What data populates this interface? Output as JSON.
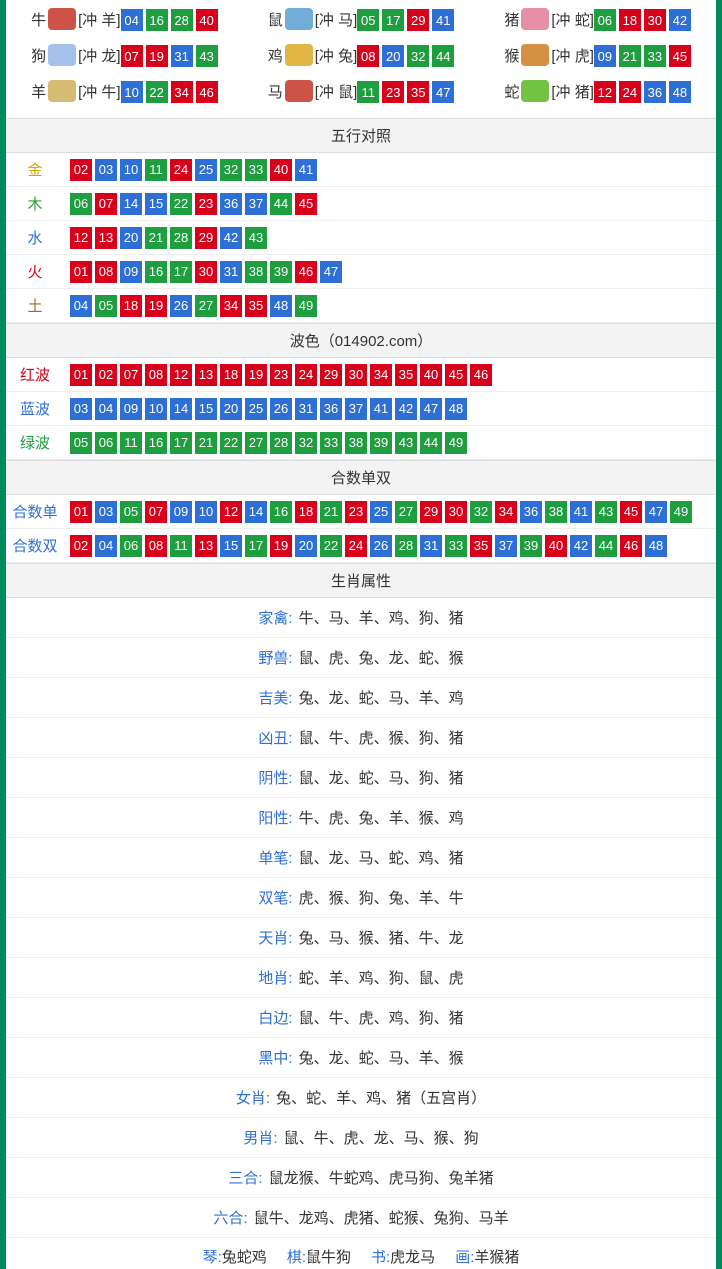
{
  "colors": {
    "red": "#d9001b",
    "blue": "#2e6fd6",
    "green": "#1e9e3e",
    "border": "#008a5c",
    "headerBg": "#f3f3f3",
    "rowBorder": "#eee",
    "gold": "#d9a300",
    "wood": "#2e9e2e",
    "water": "#2e6fd6",
    "fire": "#d9001b",
    "earth": "#a56a2a",
    "link": "#2e6fd6"
  },
  "zodiac": [
    {
      "name": "牛",
      "iconColor": "#c94a3b",
      "conflict": "[冲 羊]",
      "balls": [
        {
          "n": "04",
          "c": "blue"
        },
        {
          "n": "16",
          "c": "green"
        },
        {
          "n": "28",
          "c": "green"
        },
        {
          "n": "40",
          "c": "red"
        }
      ]
    },
    {
      "name": "鼠",
      "iconColor": "#6aa9d6",
      "conflict": "[冲 马]",
      "balls": [
        {
          "n": "05",
          "c": "green"
        },
        {
          "n": "17",
          "c": "green"
        },
        {
          "n": "29",
          "c": "red"
        },
        {
          "n": "41",
          "c": "blue"
        }
      ]
    },
    {
      "name": "猪",
      "iconColor": "#e58aa0",
      "conflict": "[冲 蛇]",
      "balls": [
        {
          "n": "06",
          "c": "green"
        },
        {
          "n": "18",
          "c": "red"
        },
        {
          "n": "30",
          "c": "red"
        },
        {
          "n": "42",
          "c": "blue"
        }
      ]
    },
    {
      "name": "狗",
      "iconColor": "#9fbfe8",
      "conflict": "[冲 龙]",
      "balls": [
        {
          "n": "07",
          "c": "red"
        },
        {
          "n": "19",
          "c": "red"
        },
        {
          "n": "31",
          "c": "blue"
        },
        {
          "n": "43",
          "c": "green"
        }
      ]
    },
    {
      "name": "鸡",
      "iconColor": "#e0b23a",
      "conflict": "[冲 兔]",
      "balls": [
        {
          "n": "08",
          "c": "red"
        },
        {
          "n": "20",
          "c": "blue"
        },
        {
          "n": "32",
          "c": "green"
        },
        {
          "n": "44",
          "c": "green"
        }
      ]
    },
    {
      "name": "猴",
      "iconColor": "#d48a3a",
      "conflict": "[冲 虎]",
      "balls": [
        {
          "n": "09",
          "c": "blue"
        },
        {
          "n": "21",
          "c": "green"
        },
        {
          "n": "33",
          "c": "green"
        },
        {
          "n": "45",
          "c": "red"
        }
      ]
    },
    {
      "name": "羊",
      "iconColor": "#d4b86a",
      "conflict": "[冲 牛]",
      "balls": [
        {
          "n": "10",
          "c": "blue"
        },
        {
          "n": "22",
          "c": "green"
        },
        {
          "n": "34",
          "c": "red"
        },
        {
          "n": "46",
          "c": "red"
        }
      ]
    },
    {
      "name": "马",
      "iconColor": "#c94a3b",
      "conflict": "[冲 鼠]",
      "balls": [
        {
          "n": "11",
          "c": "green"
        },
        {
          "n": "23",
          "c": "red"
        },
        {
          "n": "35",
          "c": "red"
        },
        {
          "n": "47",
          "c": "blue"
        }
      ]
    },
    {
      "name": "蛇",
      "iconColor": "#6abf3a",
      "conflict": "[冲 猪]",
      "balls": [
        {
          "n": "12",
          "c": "red"
        },
        {
          "n": "24",
          "c": "red"
        },
        {
          "n": "36",
          "c": "blue"
        },
        {
          "n": "48",
          "c": "blue"
        }
      ]
    }
  ],
  "sections": {
    "wuxing": {
      "title": "五行对照",
      "rows": [
        {
          "label": "金",
          "labelClass": "c-gold",
          "balls": [
            {
              "n": "02",
              "c": "red"
            },
            {
              "n": "03",
              "c": "blue"
            },
            {
              "n": "10",
              "c": "blue"
            },
            {
              "n": "11",
              "c": "green"
            },
            {
              "n": "24",
              "c": "red"
            },
            {
              "n": "25",
              "c": "blue"
            },
            {
              "n": "32",
              "c": "green"
            },
            {
              "n": "33",
              "c": "green"
            },
            {
              "n": "40",
              "c": "red"
            },
            {
              "n": "41",
              "c": "blue"
            }
          ]
        },
        {
          "label": "木",
          "labelClass": "c-wood",
          "balls": [
            {
              "n": "06",
              "c": "green"
            },
            {
              "n": "07",
              "c": "red"
            },
            {
              "n": "14",
              "c": "blue"
            },
            {
              "n": "15",
              "c": "blue"
            },
            {
              "n": "22",
              "c": "green"
            },
            {
              "n": "23",
              "c": "red"
            },
            {
              "n": "36",
              "c": "blue"
            },
            {
              "n": "37",
              "c": "blue"
            },
            {
              "n": "44",
              "c": "green"
            },
            {
              "n": "45",
              "c": "red"
            }
          ]
        },
        {
          "label": "水",
          "labelClass": "c-water",
          "balls": [
            {
              "n": "12",
              "c": "red"
            },
            {
              "n": "13",
              "c": "red"
            },
            {
              "n": "20",
              "c": "blue"
            },
            {
              "n": "21",
              "c": "green"
            },
            {
              "n": "28",
              "c": "green"
            },
            {
              "n": "29",
              "c": "red"
            },
            {
              "n": "42",
              "c": "blue"
            },
            {
              "n": "43",
              "c": "green"
            }
          ]
        },
        {
          "label": "火",
          "labelClass": "c-fire",
          "balls": [
            {
              "n": "01",
              "c": "red"
            },
            {
              "n": "08",
              "c": "red"
            },
            {
              "n": "09",
              "c": "blue"
            },
            {
              "n": "16",
              "c": "green"
            },
            {
              "n": "17",
              "c": "green"
            },
            {
              "n": "30",
              "c": "red"
            },
            {
              "n": "31",
              "c": "blue"
            },
            {
              "n": "38",
              "c": "green"
            },
            {
              "n": "39",
              "c": "green"
            },
            {
              "n": "46",
              "c": "red"
            },
            {
              "n": "47",
              "c": "blue"
            }
          ]
        },
        {
          "label": "土",
          "labelClass": "c-earth",
          "balls": [
            {
              "n": "04",
              "c": "blue"
            },
            {
              "n": "05",
              "c": "green"
            },
            {
              "n": "18",
              "c": "red"
            },
            {
              "n": "19",
              "c": "red"
            },
            {
              "n": "26",
              "c": "blue"
            },
            {
              "n": "27",
              "c": "green"
            },
            {
              "n": "34",
              "c": "red"
            },
            {
              "n": "35",
              "c": "red"
            },
            {
              "n": "48",
              "c": "blue"
            },
            {
              "n": "49",
              "c": "green"
            }
          ]
        }
      ]
    },
    "bose": {
      "title": "波色（014902.com）",
      "rows": [
        {
          "label": "红波",
          "labelClass": "c-red",
          "balls": [
            {
              "n": "01",
              "c": "red"
            },
            {
              "n": "02",
              "c": "red"
            },
            {
              "n": "07",
              "c": "red"
            },
            {
              "n": "08",
              "c": "red"
            },
            {
              "n": "12",
              "c": "red"
            },
            {
              "n": "13",
              "c": "red"
            },
            {
              "n": "18",
              "c": "red"
            },
            {
              "n": "19",
              "c": "red"
            },
            {
              "n": "23",
              "c": "red"
            },
            {
              "n": "24",
              "c": "red"
            },
            {
              "n": "29",
              "c": "red"
            },
            {
              "n": "30",
              "c": "red"
            },
            {
              "n": "34",
              "c": "red"
            },
            {
              "n": "35",
              "c": "red"
            },
            {
              "n": "40",
              "c": "red"
            },
            {
              "n": "45",
              "c": "red"
            },
            {
              "n": "46",
              "c": "red"
            }
          ]
        },
        {
          "label": "蓝波",
          "labelClass": "c-blue",
          "balls": [
            {
              "n": "03",
              "c": "blue"
            },
            {
              "n": "04",
              "c": "blue"
            },
            {
              "n": "09",
              "c": "blue"
            },
            {
              "n": "10",
              "c": "blue"
            },
            {
              "n": "14",
              "c": "blue"
            },
            {
              "n": "15",
              "c": "blue"
            },
            {
              "n": "20",
              "c": "blue"
            },
            {
              "n": "25",
              "c": "blue"
            },
            {
              "n": "26",
              "c": "blue"
            },
            {
              "n": "31",
              "c": "blue"
            },
            {
              "n": "36",
              "c": "blue"
            },
            {
              "n": "37",
              "c": "blue"
            },
            {
              "n": "41",
              "c": "blue"
            },
            {
              "n": "42",
              "c": "blue"
            },
            {
              "n": "47",
              "c": "blue"
            },
            {
              "n": "48",
              "c": "blue"
            }
          ]
        },
        {
          "label": "绿波",
          "labelClass": "c-green",
          "balls": [
            {
              "n": "05",
              "c": "green"
            },
            {
              "n": "06",
              "c": "green"
            },
            {
              "n": "11",
              "c": "green"
            },
            {
              "n": "16",
              "c": "green"
            },
            {
              "n": "17",
              "c": "green"
            },
            {
              "n": "21",
              "c": "green"
            },
            {
              "n": "22",
              "c": "green"
            },
            {
              "n": "27",
              "c": "green"
            },
            {
              "n": "28",
              "c": "green"
            },
            {
              "n": "32",
              "c": "green"
            },
            {
              "n": "33",
              "c": "green"
            },
            {
              "n": "38",
              "c": "green"
            },
            {
              "n": "39",
              "c": "green"
            },
            {
              "n": "43",
              "c": "green"
            },
            {
              "n": "44",
              "c": "green"
            },
            {
              "n": "49",
              "c": "green"
            }
          ]
        }
      ]
    },
    "heshu": {
      "title": "合数单双",
      "rows": [
        {
          "label": "合数单",
          "labelClass": "c-blue",
          "balls": [
            {
              "n": "01",
              "c": "red"
            },
            {
              "n": "03",
              "c": "blue"
            },
            {
              "n": "05",
              "c": "green"
            },
            {
              "n": "07",
              "c": "red"
            },
            {
              "n": "09",
              "c": "blue"
            },
            {
              "n": "10",
              "c": "blue"
            },
            {
              "n": "12",
              "c": "red"
            },
            {
              "n": "14",
              "c": "blue"
            },
            {
              "n": "16",
              "c": "green"
            },
            {
              "n": "18",
              "c": "red"
            },
            {
              "n": "21",
              "c": "green"
            },
            {
              "n": "23",
              "c": "red"
            },
            {
              "n": "25",
              "c": "blue"
            },
            {
              "n": "27",
              "c": "green"
            },
            {
              "n": "29",
              "c": "red"
            },
            {
              "n": "30",
              "c": "red"
            },
            {
              "n": "32",
              "c": "green"
            },
            {
              "n": "34",
              "c": "red"
            },
            {
              "n": "36",
              "c": "blue"
            },
            {
              "n": "38",
              "c": "green"
            },
            {
              "n": "41",
              "c": "blue"
            },
            {
              "n": "43",
              "c": "green"
            },
            {
              "n": "45",
              "c": "red"
            },
            {
              "n": "47",
              "c": "blue"
            },
            {
              "n": "49",
              "c": "green"
            }
          ]
        },
        {
          "label": "合数双",
          "labelClass": "c-blue",
          "balls": [
            {
              "n": "02",
              "c": "red"
            },
            {
              "n": "04",
              "c": "blue"
            },
            {
              "n": "06",
              "c": "green"
            },
            {
              "n": "08",
              "c": "red"
            },
            {
              "n": "11",
              "c": "green"
            },
            {
              "n": "13",
              "c": "red"
            },
            {
              "n": "15",
              "c": "blue"
            },
            {
              "n": "17",
              "c": "green"
            },
            {
              "n": "19",
              "c": "red"
            },
            {
              "n": "20",
              "c": "blue"
            },
            {
              "n": "22",
              "c": "green"
            },
            {
              "n": "24",
              "c": "red"
            },
            {
              "n": "26",
              "c": "blue"
            },
            {
              "n": "28",
              "c": "green"
            },
            {
              "n": "31",
              "c": "blue"
            },
            {
              "n": "33",
              "c": "green"
            },
            {
              "n": "35",
              "c": "red"
            },
            {
              "n": "37",
              "c": "blue"
            },
            {
              "n": "39",
              "c": "green"
            },
            {
              "n": "40",
              "c": "red"
            },
            {
              "n": "42",
              "c": "blue"
            },
            {
              "n": "44",
              "c": "green"
            },
            {
              "n": "46",
              "c": "red"
            },
            {
              "n": "48",
              "c": "blue"
            }
          ]
        }
      ]
    }
  },
  "attributes": {
    "title": "生肖属性",
    "rows": [
      {
        "label": "家禽:",
        "value": "牛、马、羊、鸡、狗、猪"
      },
      {
        "label": "野兽:",
        "value": "鼠、虎、兔、龙、蛇、猴"
      },
      {
        "label": "吉美:",
        "value": "兔、龙、蛇、马、羊、鸡"
      },
      {
        "label": "凶丑:",
        "value": "鼠、牛、虎、猴、狗、猪"
      },
      {
        "label": "阴性:",
        "value": "鼠、龙、蛇、马、狗、猪"
      },
      {
        "label": "阳性:",
        "value": "牛、虎、兔、羊、猴、鸡"
      },
      {
        "label": "单笔:",
        "value": "鼠、龙、马、蛇、鸡、猪"
      },
      {
        "label": "双笔:",
        "value": "虎、猴、狗、兔、羊、牛"
      },
      {
        "label": "天肖:",
        "value": "兔、马、猴、猪、牛、龙"
      },
      {
        "label": "地肖:",
        "value": "蛇、羊、鸡、狗、鼠、虎"
      },
      {
        "label": "白边:",
        "value": "鼠、牛、虎、鸡、狗、猪"
      },
      {
        "label": "黑中:",
        "value": "兔、龙、蛇、马、羊、猴"
      },
      {
        "label": "女肖:",
        "value": "兔、蛇、羊、鸡、猪（五宫肖）"
      },
      {
        "label": "男肖:",
        "value": "鼠、牛、虎、龙、马、猴、狗"
      },
      {
        "label": "三合:",
        "value": "鼠龙猴、牛蛇鸡、虎马狗、兔羊猪"
      },
      {
        "label": "六合:",
        "value": "鼠牛、龙鸡、虎猪、蛇猴、兔狗、马羊"
      }
    ]
  },
  "bottomPartial": [
    {
      "label": "琴:",
      "value": "兔蛇鸡"
    },
    {
      "label": "棋:",
      "value": "鼠牛狗"
    },
    {
      "label": "书:",
      "value": "虎龙马"
    },
    {
      "label": "画:",
      "value": "羊猴猪"
    }
  ]
}
